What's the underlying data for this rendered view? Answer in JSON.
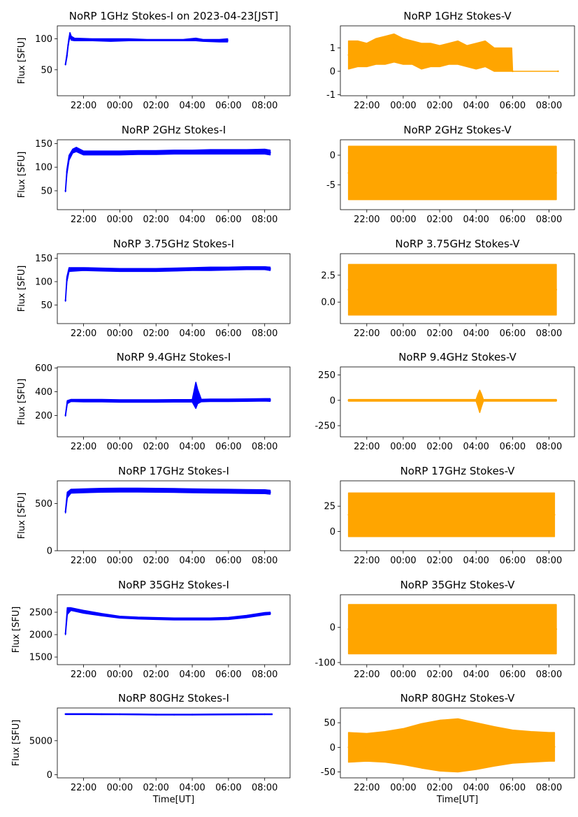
{
  "chart_data": [
    {
      "type": "scatter",
      "title": "NoRP 1GHz Stokes-I on 2023-04-23[JST]",
      "ylabel": "Flux [SFU]",
      "xlabel": "",
      "color": "#0000ff",
      "x_ticks": [
        "22:00",
        "00:00",
        "02:00",
        "04:00",
        "06:00",
        "08:00"
      ],
      "y_ticks": [
        50,
        100
      ],
      "ylim": [
        8,
        121
      ],
      "segments": [
        [
          21.0,
          58,
          60
        ],
        [
          21.08,
          70,
          75
        ],
        [
          21.15,
          88,
          92
        ],
        [
          21.2,
          97,
          102
        ],
        [
          21.25,
          103,
          110
        ],
        [
          21.32,
          98,
          104
        ],
        [
          21.5,
          97,
          101
        ],
        [
          22.5,
          97,
          100
        ],
        [
          23.5,
          96,
          100
        ],
        [
          24.5,
          97,
          100
        ],
        [
          25.5,
          97,
          99
        ],
        [
          26.5,
          97,
          99
        ],
        [
          27.5,
          97,
          99
        ],
        [
          28.2,
          97,
          101
        ],
        [
          28.6,
          96,
          99
        ],
        [
          29.5,
          95,
          99
        ],
        [
          29.95,
          95,
          100
        ]
      ]
    },
    {
      "type": "scatter",
      "title": "NoRP 1GHz Stokes-V",
      "ylabel": "",
      "xlabel": "",
      "color": "#ffa500",
      "x_ticks": [
        "22:00",
        "00:00",
        "02:00",
        "04:00",
        "06:00",
        "08:00"
      ],
      "y_ticks": [
        -1,
        0,
        1
      ],
      "ylim": [
        -1.05,
        1.95
      ],
      "segments": [
        [
          21.0,
          0.1,
          1.3
        ],
        [
          21.5,
          0.2,
          1.3
        ],
        [
          22.0,
          0.2,
          1.2
        ],
        [
          22.5,
          0.3,
          1.4
        ],
        [
          23.0,
          0.3,
          1.5
        ],
        [
          23.5,
          0.4,
          1.6
        ],
        [
          24.0,
          0.3,
          1.4
        ],
        [
          24.5,
          0.3,
          1.3
        ],
        [
          25.0,
          0.1,
          1.2
        ],
        [
          25.5,
          0.2,
          1.2
        ],
        [
          26.0,
          0.2,
          1.1
        ],
        [
          26.5,
          0.3,
          1.2
        ],
        [
          27.0,
          0.3,
          1.3
        ],
        [
          27.5,
          0.2,
          1.1
        ],
        [
          28.0,
          0.1,
          1.2
        ],
        [
          28.5,
          0.2,
          1.3
        ],
        [
          29.0,
          0.0,
          1.0
        ],
        [
          29.5,
          0.0,
          1.0
        ],
        [
          29.95,
          0.0,
          1.0
        ],
        [
          30.0,
          0.0,
          0.0
        ],
        [
          32.5,
          0.0,
          0.0
        ]
      ]
    },
    {
      "type": "scatter",
      "title": "NoRP 2GHz Stokes-I",
      "ylabel": "Flux [SFU]",
      "xlabel": "",
      "color": "#0000ff",
      "x_ticks": [
        "22:00",
        "00:00",
        "02:00",
        "04:00",
        "06:00",
        "08:00"
      ],
      "y_ticks": [
        50,
        100,
        150
      ],
      "ylim": [
        10,
        158
      ],
      "segments": [
        [
          21.0,
          48,
          52
        ],
        [
          21.08,
          85,
          95
        ],
        [
          21.2,
          115,
          125
        ],
        [
          21.4,
          130,
          138
        ],
        [
          21.6,
          133,
          142
        ],
        [
          22.0,
          126,
          134
        ],
        [
          23.0,
          126,
          134
        ],
        [
          24.0,
          126,
          134
        ],
        [
          25.0,
          127,
          135
        ],
        [
          26.0,
          127,
          135
        ],
        [
          27.0,
          128,
          136
        ],
        [
          28.0,
          128,
          136
        ],
        [
          29.0,
          128,
          137
        ],
        [
          30.0,
          128,
          137
        ],
        [
          31.0,
          128,
          137
        ],
        [
          32.0,
          128,
          138
        ],
        [
          32.3,
          126,
          136
        ]
      ]
    },
    {
      "type": "scatter",
      "title": "NoRP 2GHz Stokes-V",
      "ylabel": "",
      "xlabel": "",
      "color": "#ffa500",
      "x_ticks": [
        "22:00",
        "00:00",
        "02:00",
        "04:00",
        "06:00",
        "08:00"
      ],
      "y_ticks": [
        -5,
        0
      ],
      "ylim": [
        -9.2,
        2.6
      ],
      "segments": [
        [
          21.0,
          -7.5,
          1.5
        ],
        [
          32.4,
          -7.5,
          1.5
        ]
      ]
    },
    {
      "type": "scatter",
      "title": "NoRP 3.75GHz Stokes-I",
      "ylabel": "Flux [SFU]",
      "xlabel": "",
      "color": "#0000ff",
      "x_ticks": [
        "22:00",
        "00:00",
        "02:00",
        "04:00",
        "06:00",
        "08:00"
      ],
      "y_ticks": [
        50,
        100,
        150
      ],
      "ylim": [
        10,
        160
      ],
      "segments": [
        [
          21.0,
          58,
          62
        ],
        [
          21.08,
          100,
          110
        ],
        [
          21.2,
          122,
          130
        ],
        [
          22.0,
          124,
          130
        ],
        [
          23.0,
          123,
          129
        ],
        [
          24.0,
          122,
          128
        ],
        [
          25.0,
          122,
          128
        ],
        [
          26.0,
          122,
          128
        ],
        [
          27.0,
          123,
          129
        ],
        [
          28.0,
          124,
          130
        ],
        [
          29.0,
          124,
          131
        ],
        [
          30.0,
          125,
          131
        ],
        [
          31.0,
          126,
          132
        ],
        [
          32.0,
          126,
          132
        ],
        [
          32.3,
          124,
          131
        ]
      ]
    },
    {
      "type": "scatter",
      "title": "NoRP 3.75GHz Stokes-V",
      "ylabel": "",
      "xlabel": "",
      "color": "#ffa500",
      "x_ticks": [
        "22:00",
        "00:00",
        "02:00",
        "04:00",
        "06:00",
        "08:00"
      ],
      "y_ticks": [
        0.0,
        2.5
      ],
      "ylim": [
        -2.0,
        4.5
      ],
      "segments": [
        [
          21.0,
          -1.2,
          3.5
        ],
        [
          32.4,
          -1.2,
          3.5
        ]
      ]
    },
    {
      "type": "scatter",
      "title": "NoRP 9.4GHz Stokes-I",
      "ylabel": "Flux [SFU]",
      "xlabel": "",
      "color": "#0000ff",
      "x_ticks": [
        "22:00",
        "00:00",
        "02:00",
        "04:00",
        "06:00",
        "08:00"
      ],
      "y_ticks": [
        200,
        400,
        600
      ],
      "ylim": [
        20,
        610
      ],
      "segments": [
        [
          21.0,
          195,
          210
        ],
        [
          21.1,
          300,
          325
        ],
        [
          21.3,
          318,
          335
        ],
        [
          22.0,
          315,
          335
        ],
        [
          23.0,
          315,
          335
        ],
        [
          24.0,
          312,
          332
        ],
        [
          25.0,
          312,
          332
        ],
        [
          26.0,
          312,
          332
        ],
        [
          27.0,
          314,
          334
        ],
        [
          28.0,
          314,
          334
        ],
        [
          28.2,
          260,
          480
        ],
        [
          28.3,
          300,
          420
        ],
        [
          28.5,
          316,
          336
        ],
        [
          29.0,
          318,
          338
        ],
        [
          30.0,
          318,
          338
        ],
        [
          31.0,
          320,
          340
        ],
        [
          32.0,
          322,
          342
        ],
        [
          32.3,
          320,
          342
        ]
      ]
    },
    {
      "type": "scatter",
      "title": "NoRP 9.4GHz Stokes-V",
      "ylabel": "",
      "xlabel": "",
      "color": "#ffa500",
      "x_ticks": [
        "22:00",
        "00:00",
        "02:00",
        "04:00",
        "06:00",
        "08:00"
      ],
      "y_ticks": [
        -250,
        0,
        250
      ],
      "ylim": [
        -360,
        330
      ],
      "segments": [
        [
          21.0,
          -8,
          8
        ],
        [
          28.0,
          -8,
          8
        ],
        [
          28.1,
          -60,
          60
        ],
        [
          28.2,
          -120,
          100
        ],
        [
          28.3,
          -60,
          60
        ],
        [
          28.4,
          -8,
          8
        ],
        [
          32.4,
          -8,
          8
        ]
      ]
    },
    {
      "type": "scatter",
      "title": "NoRP 17GHz Stokes-I",
      "ylabel": "Flux [SFU]",
      "xlabel": "",
      "color": "#0000ff",
      "x_ticks": [
        "22:00",
        "00:00",
        "02:00",
        "04:00",
        "06:00",
        "08:00"
      ],
      "y_ticks": [
        0,
        500
      ],
      "ylim": [
        0,
        740
      ],
      "segments": [
        [
          21.0,
          400,
          430
        ],
        [
          21.1,
          560,
          620
        ],
        [
          21.3,
          610,
          650
        ],
        [
          22.0,
          615,
          655
        ],
        [
          23.0,
          620,
          660
        ],
        [
          24.0,
          622,
          662
        ],
        [
          25.0,
          622,
          662
        ],
        [
          26.0,
          620,
          660
        ],
        [
          27.0,
          618,
          658
        ],
        [
          28.0,
          615,
          655
        ],
        [
          29.0,
          612,
          652
        ],
        [
          30.0,
          610,
          650
        ],
        [
          31.0,
          607,
          647
        ],
        [
          32.0,
          605,
          645
        ],
        [
          32.3,
          600,
          640
        ]
      ]
    },
    {
      "type": "scatter",
      "title": "NoRP 17GHz Stokes-V",
      "ylabel": "",
      "xlabel": "",
      "color": "#ffa500",
      "x_ticks": [
        "22:00",
        "00:00",
        "02:00",
        "04:00",
        "06:00",
        "08:00"
      ],
      "y_ticks": [
        0,
        25
      ],
      "ylim": [
        -19,
        50
      ],
      "segments": [
        [
          21.0,
          -5,
          38
        ],
        [
          32.3,
          -5,
          38
        ]
      ]
    },
    {
      "type": "scatter",
      "title": "NoRP 35GHz Stokes-I",
      "ylabel": "Flux [SFU]",
      "xlabel": "",
      "color": "#0000ff",
      "x_ticks": [
        "22:00",
        "00:00",
        "02:00",
        "04:00",
        "06:00",
        "08:00"
      ],
      "y_ticks": [
        1500,
        2000,
        2500
      ],
      "ylim": [
        1330,
        2890
      ],
      "segments": [
        [
          21.0,
          2000,
          2050
        ],
        [
          21.1,
          2450,
          2600
        ],
        [
          21.3,
          2540,
          2600
        ],
        [
          22.0,
          2480,
          2540
        ],
        [
          23.0,
          2420,
          2470
        ],
        [
          24.0,
          2370,
          2410
        ],
        [
          25.0,
          2350,
          2390
        ],
        [
          26.0,
          2340,
          2380
        ],
        [
          27.0,
          2330,
          2370
        ],
        [
          28.0,
          2330,
          2370
        ],
        [
          29.0,
          2330,
          2370
        ],
        [
          30.0,
          2340,
          2385
        ],
        [
          31.0,
          2380,
          2430
        ],
        [
          32.0,
          2440,
          2490
        ],
        [
          32.3,
          2450,
          2500
        ]
      ]
    },
    {
      "type": "scatter",
      "title": "NoRP 35GHz Stokes-V",
      "ylabel": "",
      "xlabel": "",
      "color": "#ffa500",
      "x_ticks": [
        "22:00",
        "00:00",
        "02:00",
        "04:00",
        "06:00",
        "08:00"
      ],
      "y_ticks": [
        -100,
        0
      ],
      "ylim": [
        -106,
        93
      ],
      "segments": [
        [
          21.0,
          -75,
          65
        ],
        [
          32.4,
          -75,
          65
        ]
      ]
    },
    {
      "type": "scatter",
      "title": "NoRP 80GHz Stokes-I",
      "ylabel": "Flux [SFU]",
      "xlabel": "Time[UT]",
      "color": "#0000ff",
      "x_ticks": [
        "22:00",
        "00:00",
        "02:00",
        "04:00",
        "06:00",
        "08:00"
      ],
      "y_ticks": [
        0,
        5000
      ],
      "ylim": [
        -450,
        9800
      ],
      "segments": [
        [
          21.0,
          8850,
          8950
        ],
        [
          22.0,
          8850,
          8950
        ],
        [
          23.0,
          8840,
          8940
        ],
        [
          24.0,
          8830,
          8930
        ],
        [
          25.0,
          8810,
          8910
        ],
        [
          26.0,
          8780,
          8880
        ],
        [
          27.0,
          8770,
          8870
        ],
        [
          28.0,
          8780,
          8880
        ],
        [
          29.0,
          8800,
          8900
        ],
        [
          30.0,
          8810,
          8910
        ],
        [
          31.0,
          8820,
          8920
        ],
        [
          32.0,
          8830,
          8930
        ],
        [
          32.4,
          8830,
          8930
        ]
      ]
    },
    {
      "type": "scatter",
      "title": "NoRP 80GHz Stokes-V",
      "ylabel": "",
      "xlabel": "Time[UT]",
      "color": "#ffa500",
      "x_ticks": [
        "22:00",
        "00:00",
        "02:00",
        "04:00",
        "06:00",
        "08:00"
      ],
      "y_ticks": [
        -50,
        0,
        50
      ],
      "ylim": [
        -62,
        80
      ],
      "segments": [
        [
          21.0,
          -30,
          30
        ],
        [
          22.0,
          -28,
          28
        ],
        [
          23.0,
          -30,
          32
        ],
        [
          24.0,
          -35,
          38
        ],
        [
          25.0,
          -42,
          48
        ],
        [
          26.0,
          -48,
          55
        ],
        [
          27.0,
          -50,
          58
        ],
        [
          28.0,
          -45,
          50
        ],
        [
          29.0,
          -38,
          42
        ],
        [
          30.0,
          -32,
          35
        ],
        [
          31.0,
          -30,
          32
        ],
        [
          32.0,
          -28,
          30
        ],
        [
          32.3,
          -28,
          30
        ]
      ]
    }
  ]
}
